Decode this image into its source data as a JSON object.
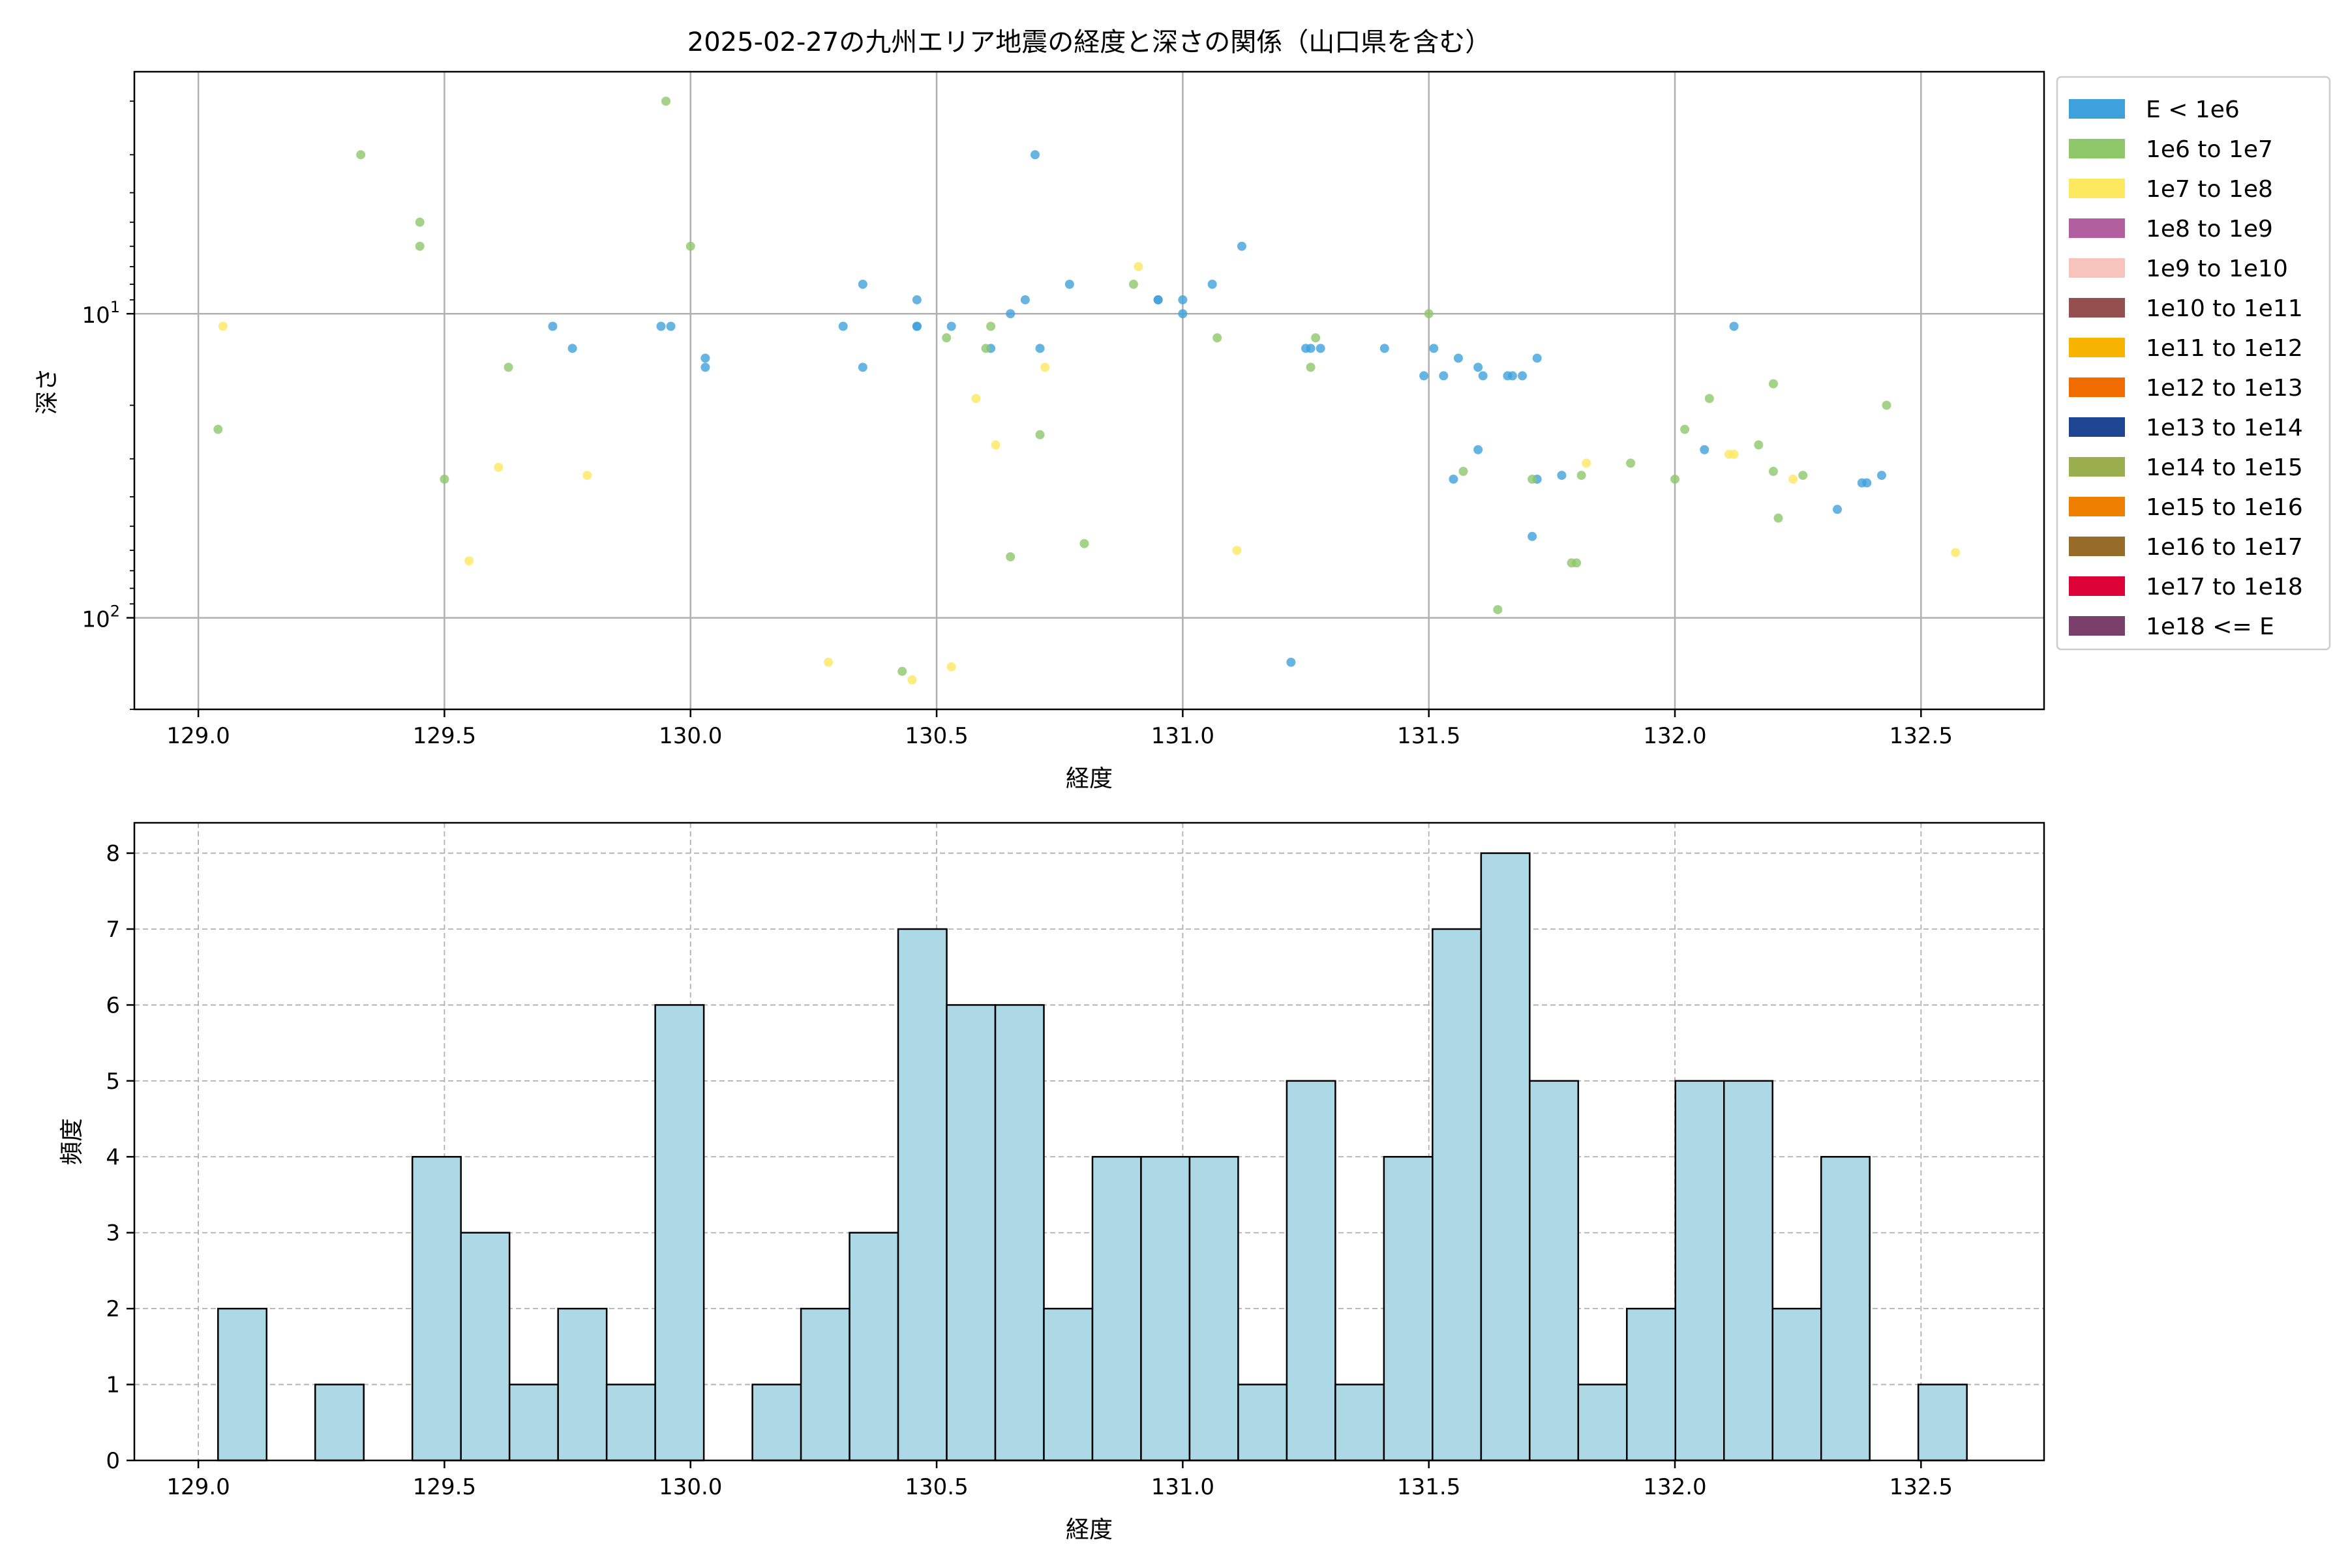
{
  "scatter": {
    "title": "2025-02-27の九州エリア地震の経度と深さの関係（山口県を含む）",
    "xlabel": "経度",
    "ylabel": "深さ"
  },
  "histogram": {
    "xlabel": "経度",
    "ylabel": "頻度"
  },
  "colors": {
    "hist_fill": "#add8e6",
    "grid": "#b0b0b0"
  },
  "legend": [
    {
      "label": "E < 1e6",
      "color": "#3fa1db"
    },
    {
      "label": "1e6 to 1e7",
      "color": "#8fc76b"
    },
    {
      "label": "1e7 to 1e8",
      "color": "#fde960"
    },
    {
      "label": "1e8 to 1e9",
      "color": "#b35f9f"
    },
    {
      "label": "1e9 to 1e10",
      "color": "#f6c3bd"
    },
    {
      "label": "1e10 to 1e11",
      "color": "#954f4f"
    },
    {
      "label": "1e11 to 1e12",
      "color": "#f6b400"
    },
    {
      "label": "1e12 to 1e13",
      "color": "#f06c00"
    },
    {
      "label": "1e13 to 1e14",
      "color": "#1d4591"
    },
    {
      "label": "1e14 to 1e15",
      "color": "#9aae4e"
    },
    {
      "label": "1e15 to 1e16",
      "color": "#ef7f00"
    },
    {
      "label": "1e16 to 1e17",
      "color": "#976b28"
    },
    {
      "label": "1e17 to 1e18",
      "color": "#dd0339"
    },
    {
      "label": "1e18 <= E",
      "color": "#7a3f6b"
    }
  ],
  "chart_data": [
    {
      "type": "scatter",
      "title": "2025-02-27の九州エリア地震の経度と深さの関係（山口県を含む）",
      "xlabel": "経度",
      "ylabel": "深さ",
      "xlim": [
        128.87,
        132.75
      ],
      "ylim": [
        200,
        1.6
      ],
      "y_scale": "log",
      "y_inverted": true,
      "xticks": [
        "129.0",
        "129.5",
        "130.0",
        "130.5",
        "131.0",
        "131.5",
        "132.0",
        "132.5"
      ],
      "yticks": [
        {
          "value": 10,
          "base": "10",
          "exp": "1"
        },
        {
          "value": 100,
          "base": "10",
          "exp": "2"
        }
      ],
      "grid": true,
      "legend_placement": "outside-right",
      "series": [
        {
          "name": "E < 1e6",
          "points": [
            [
              129.72,
              11
            ],
            [
              129.76,
              13
            ],
            [
              129.94,
              11
            ],
            [
              129.96,
              11
            ],
            [
              130.03,
              14
            ],
            [
              130.03,
              15
            ],
            [
              130.31,
              11
            ],
            [
              130.35,
              8
            ],
            [
              130.35,
              15
            ],
            [
              130.46,
              9
            ],
            [
              130.46,
              11
            ],
            [
              130.46,
              11
            ],
            [
              130.53,
              11
            ],
            [
              130.61,
              13
            ],
            [
              130.65,
              10
            ],
            [
              130.68,
              9
            ],
            [
              130.7,
              3
            ],
            [
              130.71,
              13
            ],
            [
              130.77,
              8
            ],
            [
              130.95,
              9
            ],
            [
              130.95,
              9
            ],
            [
              131.0,
              9
            ],
            [
              131.0,
              10
            ],
            [
              131.06,
              8
            ],
            [
              131.12,
              6
            ],
            [
              131.22,
              140
            ],
            [
              131.25,
              13
            ],
            [
              131.26,
              13
            ],
            [
              131.28,
              13
            ],
            [
              131.41,
              13
            ],
            [
              131.49,
              16
            ],
            [
              131.51,
              13
            ],
            [
              131.53,
              16
            ],
            [
              131.55,
              35
            ],
            [
              131.56,
              14
            ],
            [
              131.6,
              28
            ],
            [
              131.6,
              15
            ],
            [
              131.61,
              16
            ],
            [
              131.66,
              16
            ],
            [
              131.67,
              16
            ],
            [
              131.69,
              16
            ],
            [
              131.71,
              54
            ],
            [
              131.72,
              14
            ],
            [
              131.72,
              35
            ],
            [
              131.77,
              34
            ],
            [
              132.06,
              28
            ],
            [
              132.12,
              11
            ],
            [
              132.33,
              44
            ],
            [
              132.38,
              36
            ],
            [
              132.39,
              36
            ],
            [
              132.42,
              34
            ]
          ]
        },
        {
          "name": "1e6 to 1e7",
          "points": [
            [
              129.04,
              24
            ],
            [
              129.33,
              3
            ],
            [
              129.45,
              5
            ],
            [
              129.45,
              6
            ],
            [
              129.5,
              35
            ],
            [
              129.63,
              15
            ],
            [
              129.95,
              2
            ],
            [
              130.0,
              6
            ],
            [
              130.43,
              150
            ],
            [
              130.52,
              12
            ],
            [
              130.6,
              13
            ],
            [
              130.61,
              11
            ],
            [
              130.65,
              63
            ],
            [
              130.71,
              25
            ],
            [
              130.8,
              57
            ],
            [
              130.9,
              8
            ],
            [
              131.07,
              12
            ],
            [
              131.26,
              15
            ],
            [
              131.27,
              12
            ],
            [
              131.5,
              10
            ],
            [
              131.57,
              33
            ],
            [
              131.64,
              94
            ],
            [
              131.71,
              35
            ],
            [
              131.79,
              66
            ],
            [
              131.8,
              66
            ],
            [
              131.81,
              34
            ],
            [
              131.91,
              31
            ],
            [
              132.0,
              35
            ],
            [
              132.02,
              24
            ],
            [
              132.07,
              19
            ],
            [
              132.17,
              27
            ],
            [
              132.2,
              17
            ],
            [
              132.2,
              33
            ],
            [
              132.21,
              47
            ],
            [
              132.26,
              34
            ],
            [
              132.43,
              20
            ]
          ]
        },
        {
          "name": "1e7 to 1e8",
          "points": [
            [
              129.05,
              11
            ],
            [
              129.55,
              65
            ],
            [
              129.61,
              32
            ],
            [
              129.79,
              34
            ],
            [
              130.28,
              140
            ],
            [
              130.45,
              160
            ],
            [
              130.53,
              145
            ],
            [
              130.58,
              19
            ],
            [
              130.62,
              27
            ],
            [
              130.72,
              15
            ],
            [
              130.91,
              7
            ],
            [
              131.11,
              60
            ],
            [
              131.82,
              31
            ],
            [
              132.11,
              29
            ],
            [
              132.12,
              29
            ],
            [
              132.24,
              35
            ],
            [
              132.57,
              61
            ]
          ]
        }
      ]
    },
    {
      "type": "bar",
      "xlabel": "経度",
      "ylabel": "頻度",
      "xlim": [
        128.87,
        132.75
      ],
      "ylim": [
        0,
        8.4
      ],
      "xticks": [
        "129.0",
        "129.5",
        "130.0",
        "130.5",
        "131.0",
        "131.5",
        "132.0",
        "132.5"
      ],
      "yticks": [
        "0",
        "1",
        "2",
        "3",
        "4",
        "5",
        "6",
        "7",
        "8"
      ],
      "grid": true,
      "bin_start": 129.04,
      "bin_width": 0.0987,
      "counts": [
        2,
        0,
        1,
        0,
        4,
        3,
        1,
        2,
        1,
        6,
        0,
        1,
        2,
        3,
        7,
        6,
        6,
        2,
        4,
        4,
        4,
        1,
        5,
        1,
        4,
        7,
        8,
        5,
        1,
        2,
        5,
        5,
        2,
        4,
        0,
        1
      ]
    }
  ]
}
